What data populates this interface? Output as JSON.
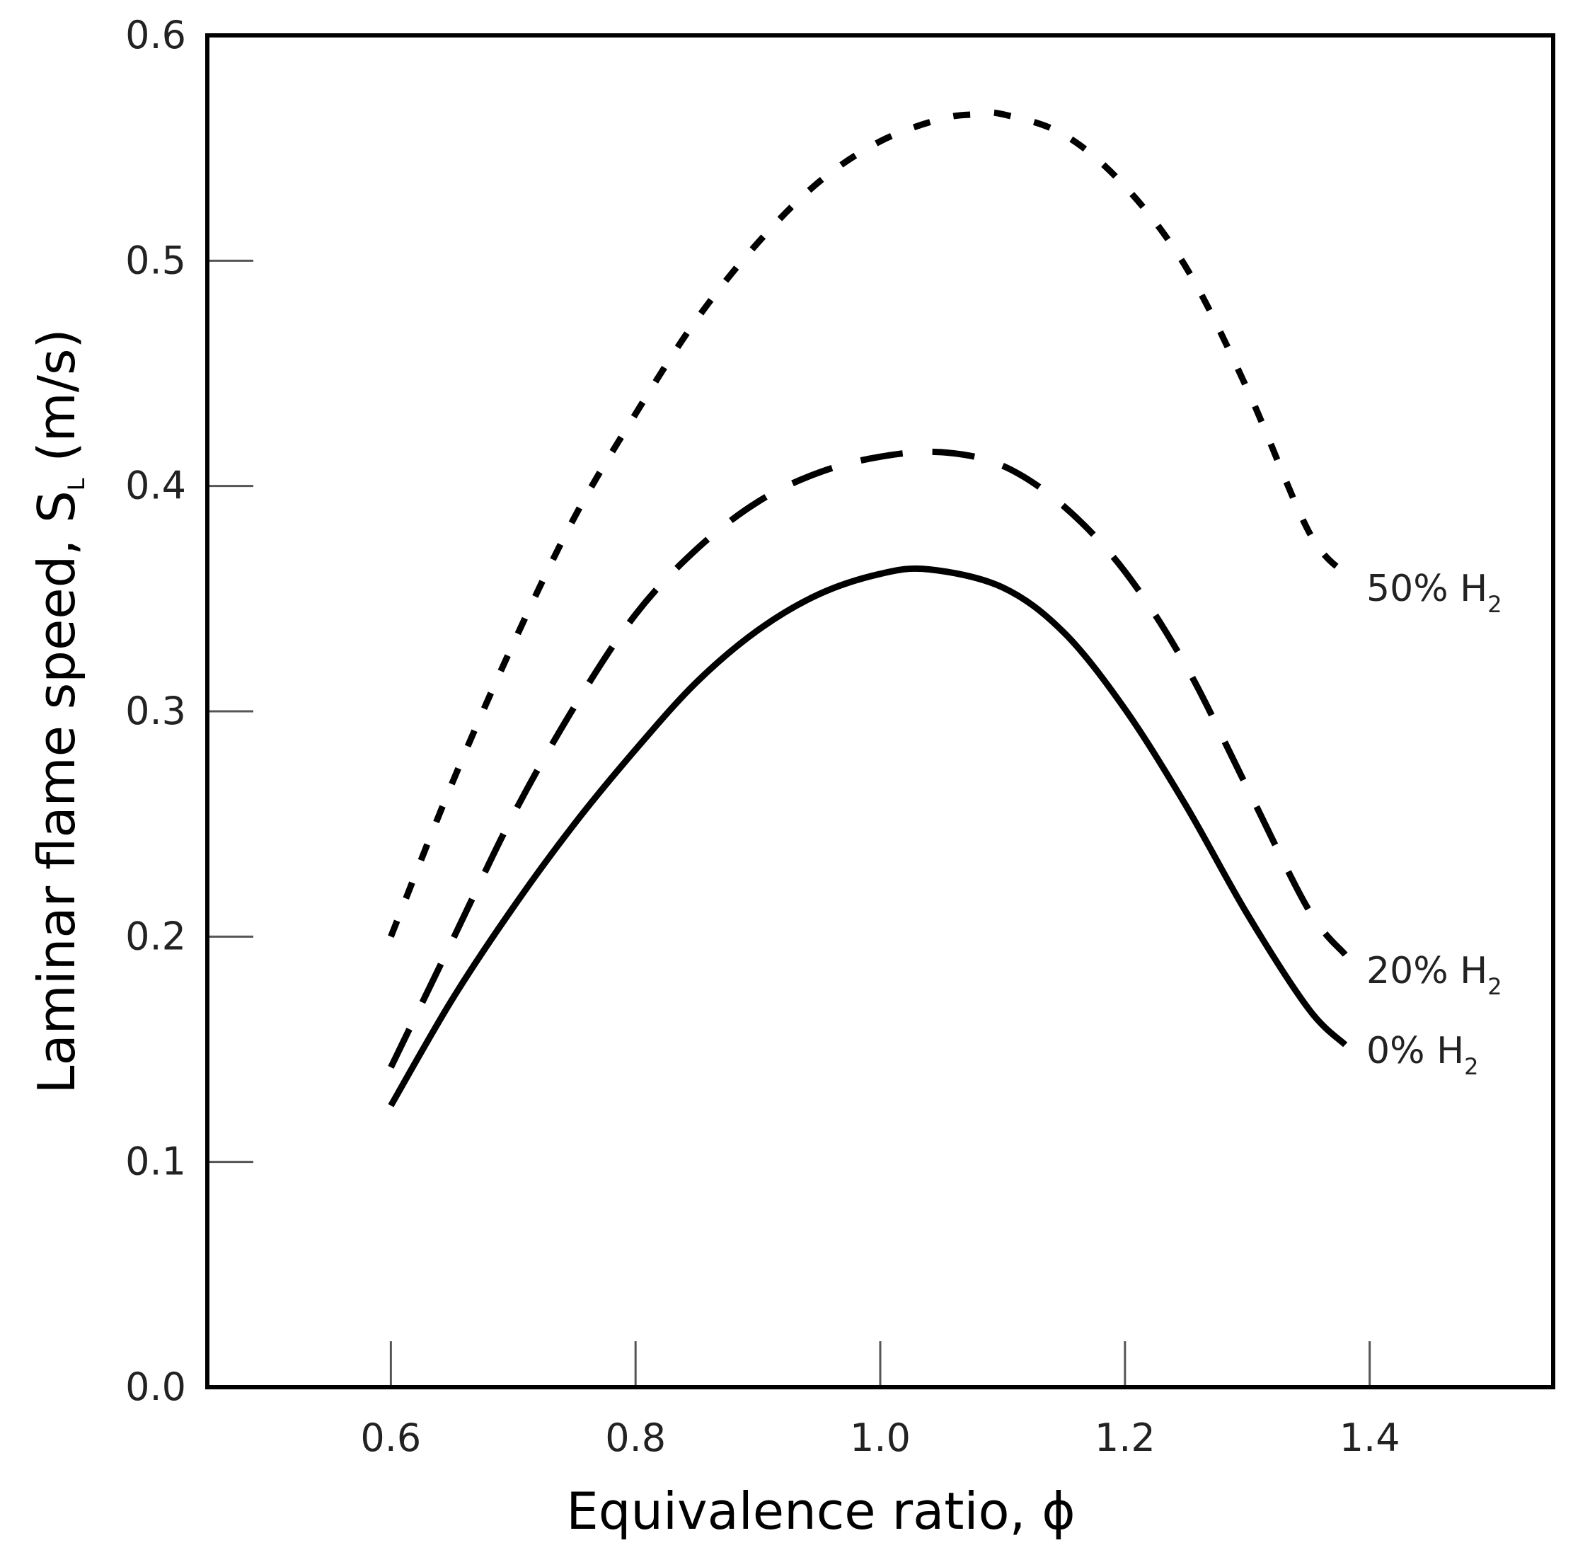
{
  "chart_data": {
    "type": "line",
    "title": "",
    "xlabel": "Equivalence ratio, ϕ",
    "ylabel_main": "Laminar flame speed, S",
    "ylabel_sub": "L",
    "ylabel_unit": " (m/s)",
    "xlim": [
      0.45,
      1.55
    ],
    "ylim": [
      0.0,
      0.6
    ],
    "x_ticks": [
      "0.6",
      "0.8",
      "1.0",
      "1.2",
      "1.4"
    ],
    "y_ticks": [
      "0.0",
      "0.1",
      "0.2",
      "0.3",
      "0.4",
      "0.5",
      "0.6"
    ],
    "grid": false,
    "series": [
      {
        "name": "0% H2",
        "label_main": "0% H",
        "label_sub": "2",
        "style": "solid",
        "color": "#000000",
        "x": [
          0.6,
          0.65,
          0.7,
          0.75,
          0.8,
          0.85,
          0.9,
          0.95,
          1.0,
          1.04,
          1.1,
          1.15,
          1.2,
          1.25,
          1.3,
          1.35,
          1.38
        ],
        "y": [
          0.125,
          0.172,
          0.213,
          0.25,
          0.283,
          0.313,
          0.336,
          0.352,
          0.361,
          0.363,
          0.355,
          0.335,
          0.301,
          0.258,
          0.21,
          0.168,
          0.152
        ]
      },
      {
        "name": "20% H2",
        "label_main": "20% H",
        "label_sub": "2",
        "style": "dashed",
        "color": "#000000",
        "x": [
          0.6,
          0.65,
          0.7,
          0.75,
          0.8,
          0.85,
          0.9,
          0.95,
          1.0,
          1.05,
          1.1,
          1.15,
          1.2,
          1.25,
          1.3,
          1.35,
          1.38
        ],
        "y": [
          0.142,
          0.198,
          0.254,
          0.302,
          0.343,
          0.372,
          0.393,
          0.406,
          0.413,
          0.415,
          0.409,
          0.391,
          0.362,
          0.32,
          0.266,
          0.212,
          0.192
        ]
      },
      {
        "name": "50% H2",
        "label_main": "50% H",
        "label_sub": "2",
        "style": "dotted",
        "color": "#000000",
        "x": [
          0.6,
          0.65,
          0.7,
          0.75,
          0.8,
          0.85,
          0.9,
          0.95,
          1.0,
          1.05,
          1.08,
          1.1,
          1.15,
          1.2,
          1.25,
          1.3,
          1.35,
          1.38
        ],
        "y": [
          0.2,
          0.268,
          0.33,
          0.386,
          0.432,
          0.474,
          0.508,
          0.535,
          0.553,
          0.563,
          0.565,
          0.565,
          0.556,
          0.533,
          0.497,
          0.443,
          0.38,
          0.361
        ]
      }
    ]
  }
}
